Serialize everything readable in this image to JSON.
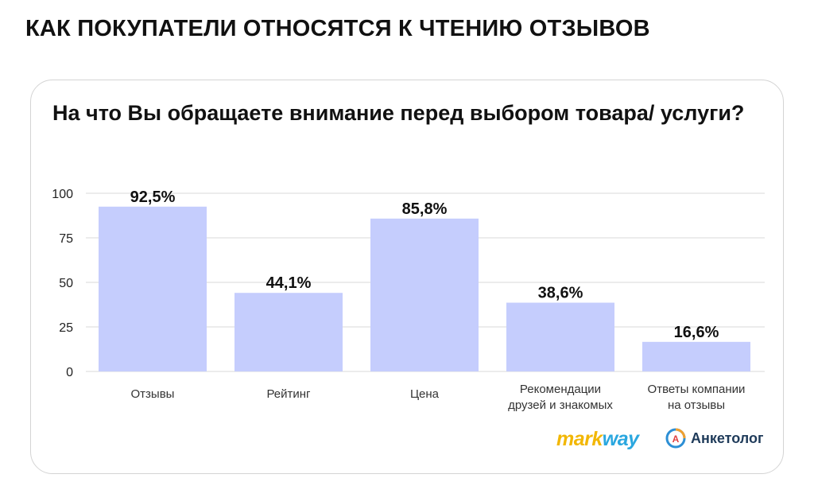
{
  "page_title": "КАК ПОКУПАТЕЛИ ОТНОСЯТСЯ К ЧТЕНИЮ ОТЗЫВОВ",
  "question": "На что Вы обращаете внимание перед выбором товара/ услуги?",
  "logos": {
    "markway_part1": "mark",
    "markway_part2": "way",
    "anketolog": "Анкетолог",
    "anketolog_icon_letter": "A"
  },
  "colors": {
    "bar": "#c5cdfd",
    "grid": "#d9d9d9",
    "text": "#111111",
    "markway_yellow": "#f2b705",
    "markway_blue": "#2aa7df",
    "anketolog_blue": "#2d8fd5",
    "anketolog_orange": "#f0a030"
  },
  "chart_data": {
    "type": "bar",
    "categories": [
      [
        "Отзывы"
      ],
      [
        "Рейтинг"
      ],
      [
        "Цена"
      ],
      [
        "Рекомендации",
        "друзей и знакомых"
      ],
      [
        "Ответы компании",
        "на отзывы"
      ]
    ],
    "values": [
      92.5,
      44.1,
      85.8,
      38.6,
      16.6
    ],
    "data_labels": [
      "92,5%",
      "44,1%",
      "85,8%",
      "38,6%",
      "16,6%"
    ],
    "yticks": [
      0,
      25,
      50,
      75,
      100
    ],
    "ylim": [
      0,
      100
    ],
    "grid": true,
    "title": "",
    "xlabel": "",
    "ylabel": ""
  }
}
